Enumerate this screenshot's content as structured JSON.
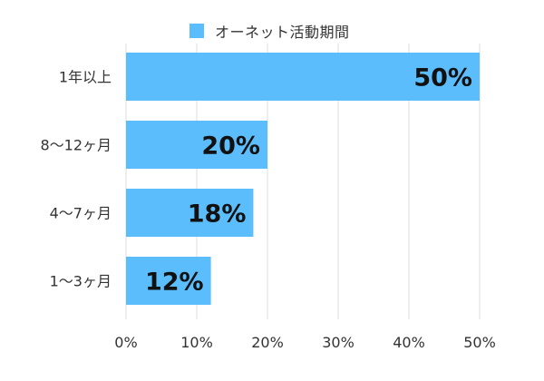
{
  "chart_data": {
    "type": "bar",
    "orientation": "horizontal",
    "categories": [
      "1年以上",
      "8〜12ヶ月",
      "4〜7ヶ月",
      "1〜3ヶ月"
    ],
    "series": [
      {
        "name": "オーネット活動期間",
        "values": [
          50,
          20,
          18,
          12
        ],
        "value_labels": [
          "50%",
          "20%",
          "18%",
          "12%"
        ],
        "color": "#5bbdfb"
      }
    ],
    "xlim": [
      0,
      50
    ],
    "xticks": [
      0,
      10,
      20,
      30,
      40,
      50
    ],
    "xtick_labels": [
      "0%",
      "10%",
      "20%",
      "30%",
      "40%",
      "50%"
    ],
    "grid": true,
    "legend_position": "top-center",
    "title": "",
    "xlabel": "",
    "ylabel": ""
  }
}
